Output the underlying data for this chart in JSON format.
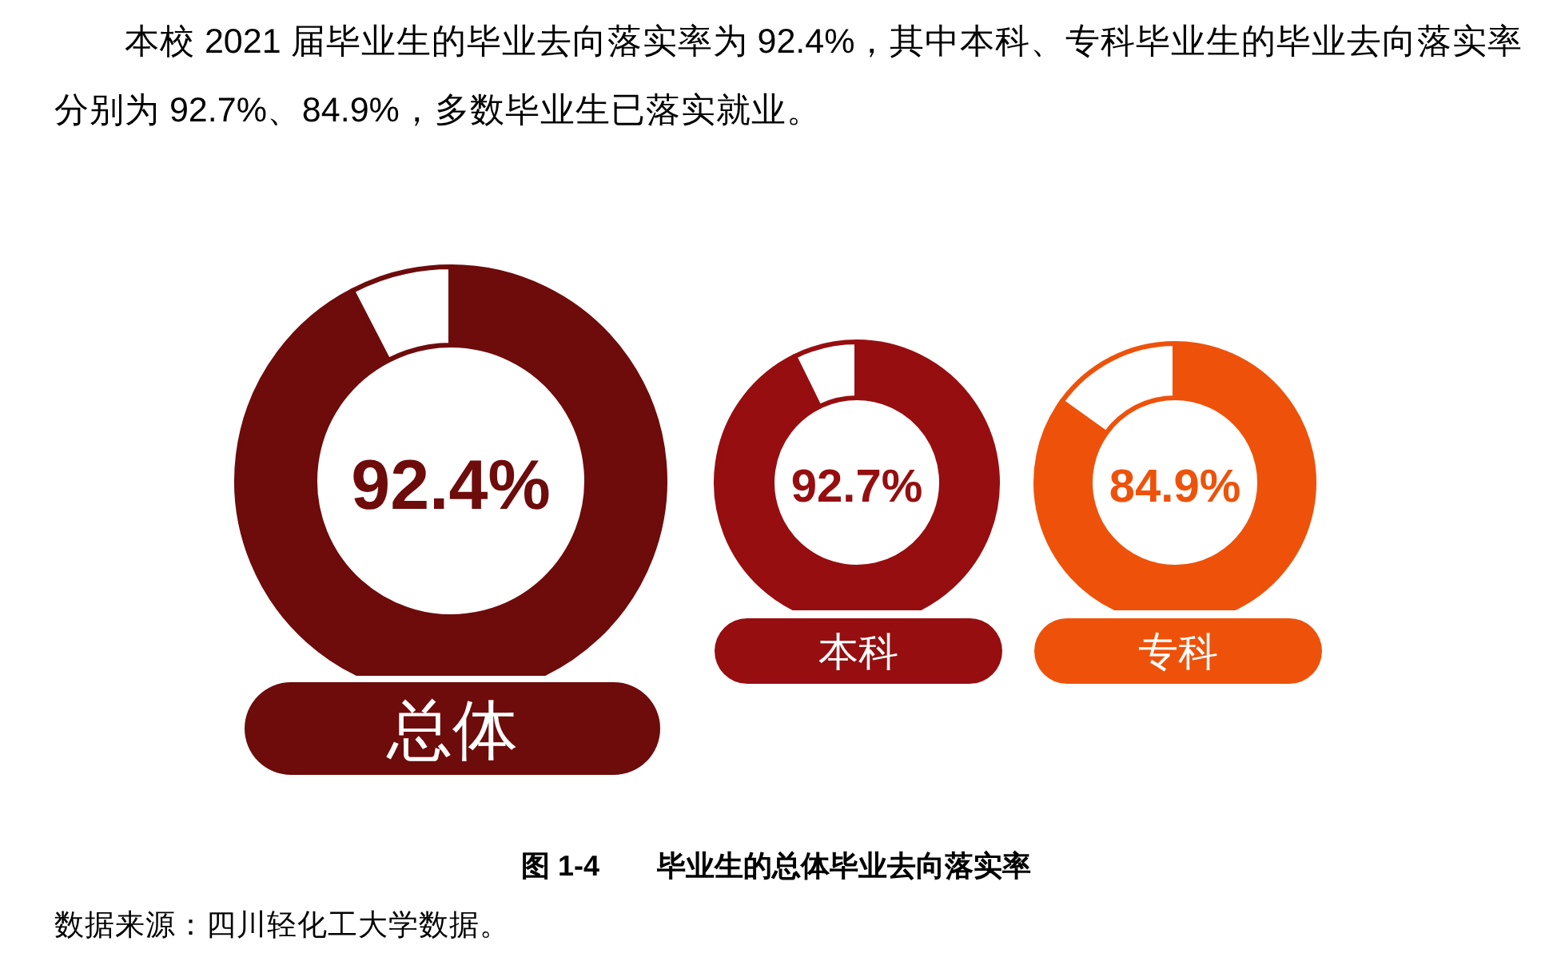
{
  "chart_data": [
    {
      "type": "other",
      "annotations": [
        "本校 2021 届毕业生的毕业去向落实率为 92.4%，其中本科、专科毕业生的毕业去向落实率分别为 92.7%、84.9%，多数毕业生已落实就业。"
      ]
    },
    {
      "type": "donut",
      "title": "总体",
      "categories": [
        null,
        null
      ],
      "values": [
        92.4,
        7.6
      ],
      "colors": [
        "#6e0b0b",
        "#ffffff"
      ],
      "value_labels": [
        "92.4%",
        null
      ]
    },
    {
      "type": "donut",
      "title": "本科",
      "categories": [
        null,
        null
      ],
      "values": [
        92.7,
        7.3
      ],
      "colors": [
        "#960e10",
        "#ffffff"
      ],
      "value_labels": [
        "92.7%",
        null
      ]
    },
    {
      "type": "donut",
      "title": "专科",
      "categories": [
        null,
        null
      ],
      "values": [
        84.9,
        15.1
      ],
      "colors": [
        "#ee520a",
        "#ffffff"
      ],
      "value_labels": [
        "84.9%",
        null
      ]
    },
    {
      "type": "other",
      "title": "图 1-4　　毕业生的总体毕业去向落实率",
      "annotations": [
        "数据来源：四川轻化工大学数据。"
      ]
    }
  ]
}
